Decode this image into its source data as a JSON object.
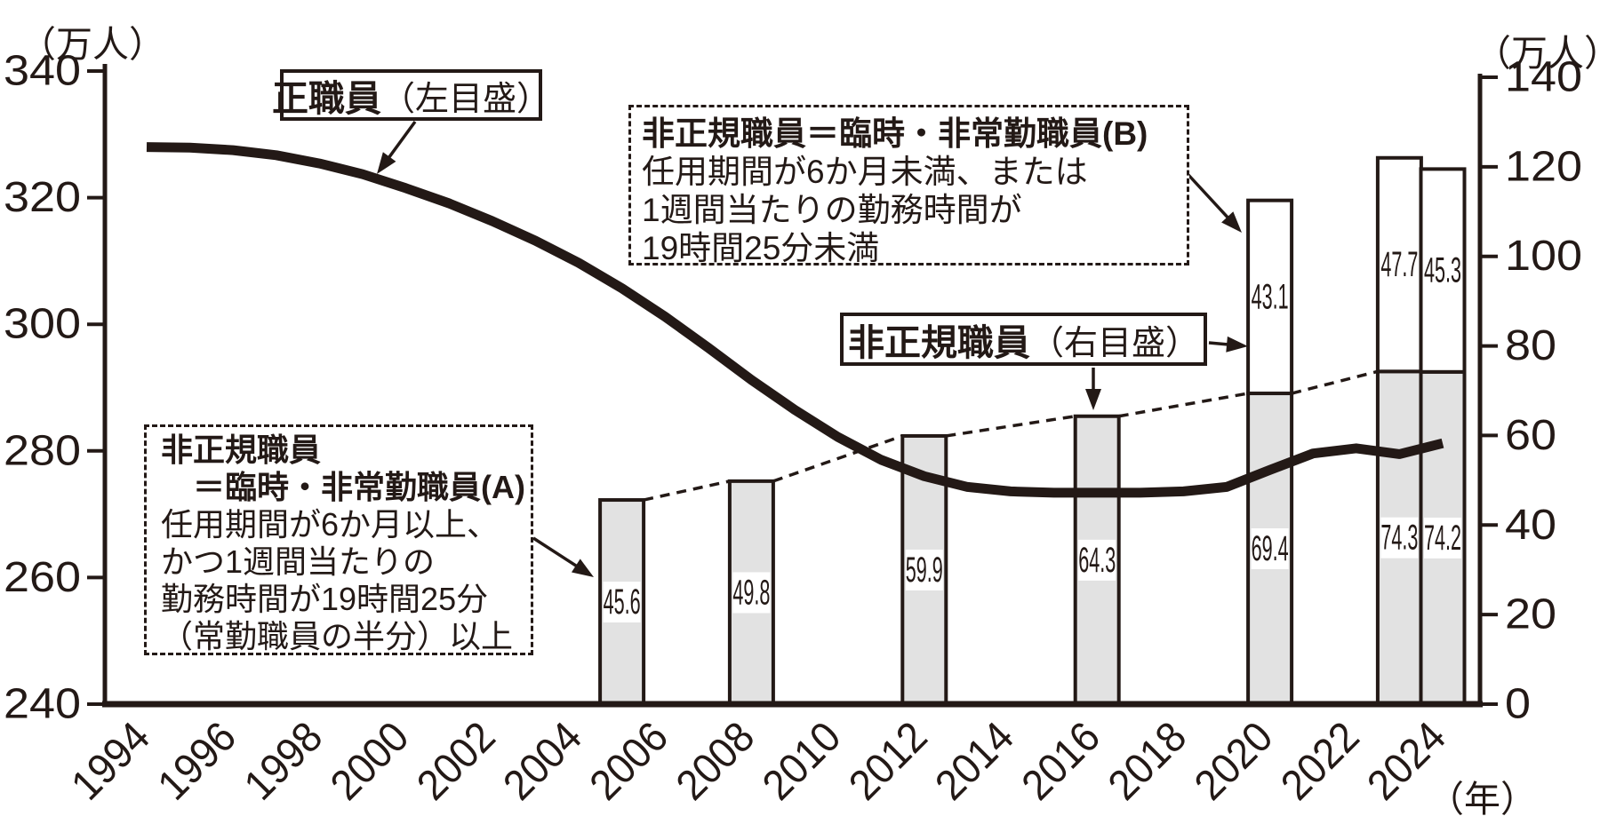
{
  "page": {
    "background": "#ffffff",
    "ink": "#231916",
    "bar_a_fill": "#e2e2e2",
    "bar_b_fill": "#ffffff"
  },
  "units": {
    "left": "（万人）",
    "right": "（万人）",
    "x_axis": "（年）"
  },
  "annotations": {
    "line_label": {
      "main": "正職員",
      "scale_note": "（左目盛）"
    },
    "bar_label": {
      "main": "非正規職員",
      "scale_note": "（右目盛）"
    },
    "box_b": {
      "title": "非正規職員＝臨時・非常勤職員(B)",
      "lines": [
        "任用期間が6か月未満、または",
        "1週間当たりの勤務時間が",
        "19時間25分未満"
      ]
    },
    "box_a": {
      "title_line1": "非正規職員",
      "title_line2": "　＝臨時・非常勤職員(A)",
      "lines": [
        "任用期間が6か月以上、",
        "かつ1週間当たりの",
        "勤務時間が19時間25分",
        "（常勤職員の半分）以上"
      ]
    }
  },
  "chart_data": {
    "type": "combo-line-stacked-bar",
    "title": "",
    "grid": false,
    "left_axis": {
      "unit": "（万人）",
      "min": 240,
      "max": 340,
      "ticks": [
        340,
        320,
        300,
        280,
        260,
        240
      ],
      "series": "正職員"
    },
    "right_axis": {
      "unit": "（万人）",
      "min": 0,
      "max": 140,
      "ticks": [
        140,
        120,
        100,
        80,
        60,
        40,
        20,
        0
      ],
      "series": "非正規職員"
    },
    "x_axis": {
      "unit": "（年）",
      "tick_years": [
        1994,
        1996,
        1998,
        2000,
        2002,
        2004,
        2006,
        2008,
        2010,
        2012,
        2014,
        2016,
        2018,
        2020,
        2022,
        2024
      ]
    },
    "line_series": {
      "name": "正職員（左目盛）",
      "axis": "left",
      "points": [
        [
          1994,
          328.0
        ],
        [
          1995,
          327.9
        ],
        [
          1996,
          327.5
        ],
        [
          1997,
          326.7
        ],
        [
          1998,
          325.4
        ],
        [
          1999,
          323.7
        ],
        [
          2000,
          321.5
        ],
        [
          2001,
          319.1
        ],
        [
          2002,
          316.3
        ],
        [
          2003,
          313.2
        ],
        [
          2004,
          309.7
        ],
        [
          2005,
          305.7
        ],
        [
          2006,
          301.2
        ],
        [
          2007,
          296.3
        ],
        [
          2008,
          291.2
        ],
        [
          2009,
          286.5
        ],
        [
          2010,
          282.2
        ],
        [
          2011,
          278.6
        ],
        [
          2012,
          276.0
        ],
        [
          2013,
          274.3
        ],
        [
          2014,
          273.6
        ],
        [
          2015,
          273.4
        ],
        [
          2016,
          273.4
        ],
        [
          2017,
          273.4
        ],
        [
          2018,
          273.6
        ],
        [
          2019,
          274.3
        ],
        [
          2020,
          277.0
        ],
        [
          2021,
          279.6
        ],
        [
          2022,
          280.4
        ],
        [
          2023,
          279.5
        ],
        [
          2024,
          281.2
        ]
      ]
    },
    "bar_series": {
      "name": "非正規職員（右目盛）",
      "axis": "right",
      "stack_order": [
        "A",
        "B"
      ],
      "bars": [
        {
          "year": 2005,
          "a": 45.6,
          "b": null
        },
        {
          "year": 2008,
          "a": 49.8,
          "b": null
        },
        {
          "year": 2012,
          "a": 59.9,
          "b": null
        },
        {
          "year": 2016,
          "a": 64.3,
          "b": null
        },
        {
          "year": 2020,
          "a": 69.4,
          "b": 43.1
        },
        {
          "year": 2023,
          "a": 74.3,
          "b": 47.7
        },
        {
          "year": 2024,
          "a": 74.2,
          "b": 45.3
        }
      ]
    }
  }
}
